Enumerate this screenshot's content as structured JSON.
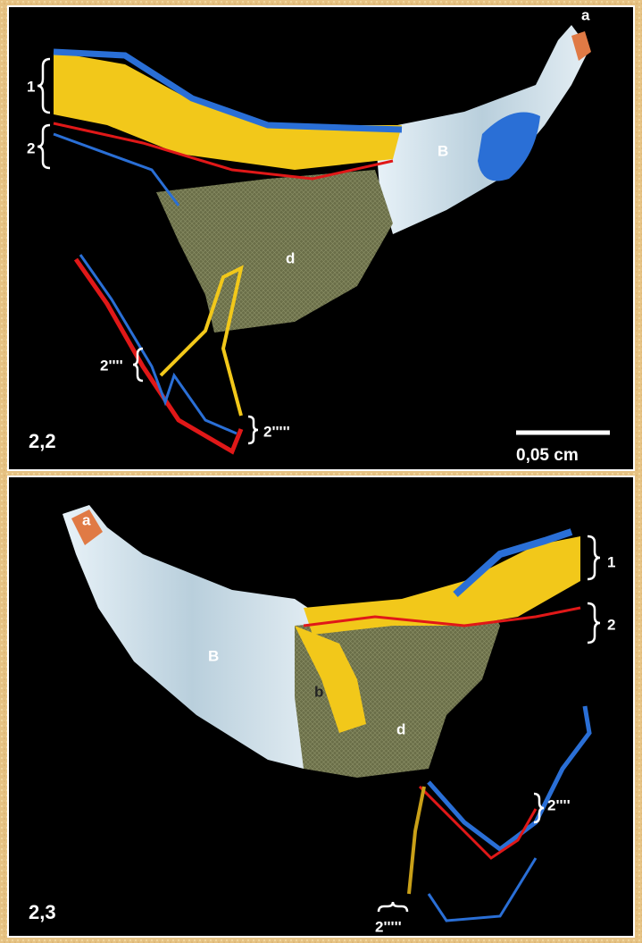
{
  "panels": [
    {
      "label": "2,2",
      "scale_bar": "0,05 cm",
      "annotations": {
        "band_1": "1",
        "band_2": "2",
        "a": "a",
        "B": "B",
        "d": "d",
        "lower_1": "2''''",
        "lower_2": "2'''''"
      }
    },
    {
      "label": "2,3",
      "annotations": {
        "a": "a",
        "B": "B",
        "b": "b",
        "d": "d",
        "band_1": "1",
        "band_2": "2",
        "lower_1": "2''''",
        "lower_2": "2'''''"
      }
    }
  ]
}
